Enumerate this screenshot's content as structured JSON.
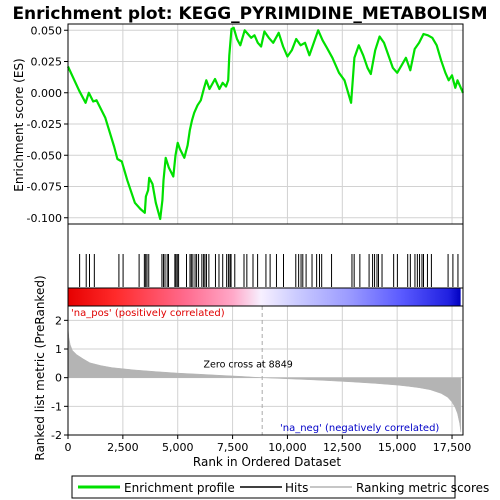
{
  "chart_data": {
    "type": "line",
    "title": "Enrichment plot: KEGG_PYRIMIDINE_METABOLISM",
    "xlabel": "Rank in Ordered Dataset",
    "xlim": [
      0,
      18000
    ],
    "x_ticks": [
      "0",
      "2,500",
      "5,000",
      "7,500",
      "10,000",
      "12,500",
      "15,000",
      "17,500"
    ],
    "x_tick_values": [
      0,
      2500,
      5000,
      7500,
      10000,
      12500,
      15000,
      17500
    ],
    "top_panel": {
      "ylabel": "Enrichment score (ES)",
      "ylim": [
        -0.105,
        0.055
      ],
      "y_ticks": [
        "0.050",
        "0.025",
        "0.000",
        "-0.025",
        "-0.050",
        "-0.075",
        "-0.100"
      ],
      "y_tick_values": [
        0.05,
        0.025,
        0.0,
        -0.025,
        -0.05,
        -0.075,
        -0.1
      ],
      "series": [
        {
          "name": "Enrichment profile",
          "color": "#00e000",
          "x": [
            0,
            500,
            800,
            950,
            1150,
            1300,
            1700,
            2100,
            2250,
            2450,
            2700,
            3050,
            3300,
            3500,
            3550,
            3650,
            3700,
            3850,
            4000,
            4200,
            4300,
            4350,
            4450,
            4600,
            4800,
            4900,
            5000,
            5100,
            5300,
            5450,
            5550,
            5650,
            5750,
            5900,
            6050,
            6200,
            6300,
            6450,
            6700,
            6900,
            7050,
            7200,
            7300,
            7350,
            7450,
            7550,
            7700,
            7850,
            8050,
            8200,
            8350,
            8500,
            8650,
            8800,
            8950,
            9150,
            9350,
            9600,
            9800,
            10000,
            10200,
            10400,
            10600,
            10800,
            11000,
            11200,
            11400,
            11600,
            11800,
            12050,
            12350,
            12600,
            12900,
            13050,
            13250,
            13450,
            13650,
            13800,
            14000,
            14200,
            14400,
            14600,
            14800,
            15000,
            15200,
            15400,
            15600,
            15800,
            16000,
            16200,
            16400,
            16600,
            16800,
            17000,
            17200,
            17350,
            17500,
            17650,
            17750,
            17850,
            18000
          ],
          "y": [
            0.021,
            0.002,
            -0.008,
            0.0,
            -0.007,
            -0.006,
            -0.02,
            -0.043,
            -0.053,
            -0.055,
            -0.07,
            -0.088,
            -0.093,
            -0.096,
            -0.083,
            -0.078,
            -0.068,
            -0.073,
            -0.088,
            -0.101,
            -0.086,
            -0.07,
            -0.052,
            -0.06,
            -0.067,
            -0.05,
            -0.04,
            -0.045,
            -0.052,
            -0.042,
            -0.03,
            -0.022,
            -0.016,
            -0.01,
            -0.006,
            0.004,
            0.01,
            0.003,
            0.011,
            0.003,
            0.008,
            0.005,
            0.01,
            0.03,
            0.051,
            0.052,
            0.043,
            0.038,
            0.05,
            0.047,
            0.044,
            0.046,
            0.04,
            0.037,
            0.049,
            0.044,
            0.04,
            0.048,
            0.037,
            0.029,
            0.034,
            0.043,
            0.038,
            0.04,
            0.03,
            0.04,
            0.05,
            0.042,
            0.036,
            0.028,
            0.016,
            0.01,
            -0.008,
            0.028,
            0.038,
            0.03,
            0.02,
            0.015,
            0.034,
            0.045,
            0.04,
            0.03,
            0.02,
            0.016,
            0.022,
            0.028,
            0.018,
            0.035,
            0.04,
            0.047,
            0.046,
            0.044,
            0.038,
            0.026,
            0.016,
            0.01,
            0.014,
            0.004,
            0.01,
            0.006,
            0.0
          ]
        }
      ]
    },
    "hits": {
      "name": "Hits",
      "positions": [
        530,
        830,
        980,
        1200,
        2320,
        2510,
        3240,
        3480,
        3540,
        3600,
        3680,
        4280,
        4350,
        4420,
        4520,
        4580,
        4870,
        4920,
        4980,
        5040,
        5400,
        5560,
        5620,
        5690,
        5790,
        5860,
        5950,
        6100,
        6180,
        6240,
        6310,
        6420,
        6720,
        6880,
        7050,
        7230,
        7310,
        7380,
        7430,
        7600,
        8020,
        8150,
        8430,
        8640,
        9020,
        9210,
        9500,
        9820,
        10380,
        10510,
        10620,
        10700,
        10850,
        11120,
        11330,
        11460,
        11560,
        12010,
        12940,
        13040,
        13300,
        13720,
        13880,
        13970,
        14080,
        14150,
        14310,
        14840,
        15010,
        15480,
        15600,
        15810,
        15920,
        16020,
        16130,
        16200,
        16380,
        16560,
        17320,
        17540,
        17770
      ]
    },
    "bottom_panel": {
      "ylabel": "Ranked list metric (PreRanked)",
      "ylim": [
        -2.0,
        2.5
      ],
      "y_ticks": [
        "2",
        "1",
        "0",
        "-1",
        "-2"
      ],
      "y_tick_values": [
        2,
        1,
        0,
        -1,
        -2
      ],
      "series": [
        {
          "name": "Ranking metric scores",
          "color": "#b4b4b4",
          "x": [
            0,
            40,
            100,
            200,
            400,
            700,
            1000,
            1500,
            2000,
            3000,
            4000,
            5000,
            6000,
            7000,
            8000,
            8849,
            10000,
            11000,
            12000,
            13000,
            14000,
            15000,
            15500,
            16000,
            16500,
            17000,
            17300,
            17500,
            17650,
            17750,
            17850,
            17900
          ],
          "y": [
            1.75,
            1.4,
            1.15,
            0.95,
            0.8,
            0.65,
            0.52,
            0.42,
            0.35,
            0.27,
            0.21,
            0.16,
            0.12,
            0.08,
            0.04,
            0.0,
            -0.04,
            -0.07,
            -0.11,
            -0.15,
            -0.2,
            -0.26,
            -0.3,
            -0.35,
            -0.42,
            -0.55,
            -0.68,
            -0.85,
            -1.05,
            -1.25,
            -1.6,
            -1.9
          ]
        }
      ],
      "zero_cross_label": "Zero cross at 8849",
      "zero_cross_value": 8849,
      "pos_label": "'na_pos' (positively correlated)",
      "neg_label": "'na_neg' (negatively correlated)",
      "pos_label_color": "#e00000",
      "neg_label_color": "#0000c8"
    },
    "legend": {
      "placement": "bottom",
      "entries": [
        {
          "name": "Enrichment profile",
          "color": "#00e000"
        },
        {
          "name": "Hits",
          "color": "#000000"
        },
        {
          "name": "Ranking metric scores",
          "color": "#b4b4b4"
        }
      ]
    },
    "grid": true,
    "colors": {
      "es_line": "#00e000",
      "grid": "#d2d2d2",
      "metric_fill": "#b4b4b4",
      "zero_cross_line": "#aaaaaa"
    }
  }
}
